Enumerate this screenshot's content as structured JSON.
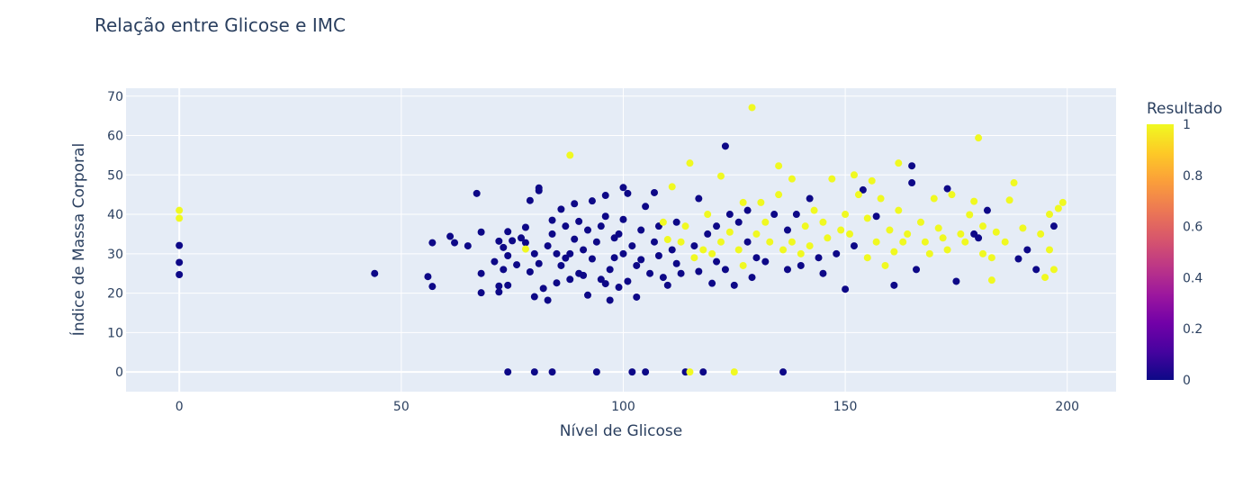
{
  "chart_data": {
    "type": "scatter",
    "title": "Relação entre Glicose e IMC",
    "xlabel": "Nível de Glicose",
    "ylabel": "Índice de Massa Corporal",
    "xlim": [
      -12,
      211
    ],
    "ylim": [
      -5,
      72
    ],
    "xticks": [
      0,
      50,
      100,
      150,
      200
    ],
    "xtick_labels": [
      "0",
      "50",
      "100",
      "150",
      "200"
    ],
    "yticks": [
      0,
      10,
      20,
      30,
      40,
      50,
      60,
      70
    ],
    "ytick_labels": [
      "0",
      "10",
      "20",
      "30",
      "40",
      "50",
      "60",
      "70"
    ],
    "grid": true,
    "colorbar": {
      "title": "Resultado",
      "range": [
        0,
        1
      ],
      "ticks": [
        0,
        0.2,
        0.4,
        0.6,
        0.8,
        1
      ],
      "tick_labels": [
        "0",
        "0.2",
        "0.4",
        "0.6",
        "0.8",
        "1"
      ],
      "colorscale": [
        "#0d0887",
        "#46039f",
        "#7201a8",
        "#9c179e",
        "#bd3786",
        "#d8576b",
        "#ed7953",
        "#fb9f3a",
        "#fdca26",
        "#f0f921"
      ]
    },
    "points": [
      [
        0,
        32.1,
        0
      ],
      [
        0,
        27.8,
        0
      ],
      [
        0,
        24.7,
        0
      ],
      [
        0,
        41.0,
        1
      ],
      [
        0,
        39.0,
        1
      ],
      [
        44,
        25.0,
        0
      ],
      [
        56,
        24.2,
        0
      ],
      [
        57,
        21.7,
        0
      ],
      [
        57,
        32.8,
        0
      ],
      [
        61,
        34.4,
        0
      ],
      [
        62,
        32.8,
        0
      ],
      [
        65,
        32.0,
        0
      ],
      [
        67,
        45.3,
        0
      ],
      [
        68,
        35.5,
        0
      ],
      [
        68,
        25.0,
        0
      ],
      [
        68,
        20.1,
        0
      ],
      [
        71,
        28.0,
        0
      ],
      [
        72,
        33.2,
        0
      ],
      [
        72,
        21.8,
        0
      ],
      [
        72,
        20.3,
        0
      ],
      [
        73,
        26.0,
        0
      ],
      [
        73,
        31.6,
        0
      ],
      [
        74,
        35.6,
        0
      ],
      [
        74,
        29.5,
        0
      ],
      [
        74,
        22.0,
        0
      ],
      [
        74,
        0,
        0
      ],
      [
        75,
        33.3,
        0
      ],
      [
        76,
        27.2,
        0
      ],
      [
        77,
        34.0,
        0
      ],
      [
        78,
        32.8,
        0
      ],
      [
        78,
        36.7,
        0
      ],
      [
        78,
        31.2,
        1
      ],
      [
        79,
        25.4,
        0
      ],
      [
        79,
        43.5,
        0
      ],
      [
        80,
        30.0,
        0
      ],
      [
        80,
        19.1,
        0
      ],
      [
        80,
        0,
        0
      ],
      [
        81,
        46.0,
        0
      ],
      [
        81,
        46.7,
        0
      ],
      [
        81,
        27.5,
        0
      ],
      [
        82,
        21.2,
        0
      ],
      [
        83,
        18.2,
        0
      ],
      [
        83,
        32.0,
        0
      ],
      [
        84,
        35.0,
        0
      ],
      [
        84,
        38.5,
        0
      ],
      [
        84,
        0,
        0
      ],
      [
        85,
        30.0,
        0
      ],
      [
        85,
        22.6,
        0
      ],
      [
        86,
        41.3,
        0
      ],
      [
        86,
        27.0,
        0
      ],
      [
        87,
        37.0,
        0
      ],
      [
        87,
        28.9,
        0
      ],
      [
        88,
        55.0,
        1
      ],
      [
        88,
        30.0,
        0
      ],
      [
        88,
        23.5,
        0
      ],
      [
        89,
        33.7,
        0
      ],
      [
        89,
        42.7,
        0
      ],
      [
        90,
        38.2,
        0
      ],
      [
        90,
        25.0,
        0
      ],
      [
        91,
        31.0,
        0
      ],
      [
        91,
        24.5,
        0
      ],
      [
        92,
        19.5,
        0
      ],
      [
        92,
        36.0,
        0
      ],
      [
        93,
        28.7,
        0
      ],
      [
        93,
        43.4,
        0
      ],
      [
        94,
        0,
        0
      ],
      [
        94,
        33.0,
        0
      ],
      [
        95,
        37.0,
        0
      ],
      [
        95,
        23.5,
        0
      ],
      [
        96,
        39.5,
        0
      ],
      [
        96,
        22.4,
        0
      ],
      [
        96,
        44.8,
        0
      ],
      [
        97,
        26.0,
        0
      ],
      [
        97,
        18.2,
        0
      ],
      [
        98,
        34.0,
        0
      ],
      [
        98,
        29.0,
        0
      ],
      [
        99,
        35.0,
        0
      ],
      [
        99,
        21.5,
        0
      ],
      [
        100,
        30.0,
        0
      ],
      [
        100,
        46.8,
        0
      ],
      [
        100,
        38.7,
        0
      ],
      [
        101,
        23.0,
        0
      ],
      [
        101,
        45.3,
        0
      ],
      [
        102,
        0,
        0
      ],
      [
        102,
        32.0,
        0
      ],
      [
        103,
        27.0,
        0
      ],
      [
        103,
        19.0,
        0
      ],
      [
        104,
        36.0,
        0
      ],
      [
        104,
        28.5,
        0
      ],
      [
        105,
        0,
        0
      ],
      [
        105,
        42.0,
        0
      ],
      [
        106,
        25.0,
        0
      ],
      [
        107,
        33.0,
        0
      ],
      [
        107,
        45.5,
        0
      ],
      [
        108,
        29.5,
        0
      ],
      [
        108,
        37.0,
        0
      ],
      [
        109,
        24.0,
        0
      ],
      [
        109,
        38.0,
        1
      ],
      [
        110,
        22.0,
        0
      ],
      [
        110,
        33.6,
        1
      ],
      [
        111,
        31.0,
        0
      ],
      [
        111,
        47.0,
        1
      ],
      [
        112,
        27.5,
        0
      ],
      [
        112,
        38.0,
        0
      ],
      [
        113,
        33.0,
        1
      ],
      [
        113,
        25.0,
        0
      ],
      [
        114,
        37.0,
        1
      ],
      [
        114,
        0,
        0
      ],
      [
        115,
        0,
        1
      ],
      [
        115,
        53.0,
        1
      ],
      [
        116,
        29.0,
        1
      ],
      [
        116,
        32.0,
        0
      ],
      [
        117,
        44.0,
        0
      ],
      [
        117,
        25.5,
        0
      ],
      [
        118,
        31.0,
        1
      ],
      [
        118,
        0,
        0
      ],
      [
        119,
        35.0,
        0
      ],
      [
        119,
        40.0,
        1
      ],
      [
        120,
        22.5,
        0
      ],
      [
        120,
        30.0,
        1
      ],
      [
        121,
        37.0,
        0
      ],
      [
        121,
        28.0,
        0
      ],
      [
        122,
        49.7,
        1
      ],
      [
        122,
        33.0,
        1
      ],
      [
        123,
        57.3,
        0
      ],
      [
        123,
        26.0,
        0
      ],
      [
        124,
        35.5,
        1
      ],
      [
        124,
        40.0,
        0
      ],
      [
        125,
        0,
        1
      ],
      [
        125,
        22.0,
        0
      ],
      [
        126,
        31.0,
        1
      ],
      [
        126,
        38.0,
        0
      ],
      [
        127,
        27.0,
        1
      ],
      [
        127,
        43.0,
        1
      ],
      [
        128,
        33.0,
        0
      ],
      [
        128,
        41.0,
        0
      ],
      [
        129,
        67.1,
        1
      ],
      [
        129,
        24.0,
        0
      ],
      [
        130,
        35.0,
        1
      ],
      [
        130,
        29.0,
        0
      ],
      [
        131,
        43.0,
        1
      ],
      [
        132,
        38.0,
        1
      ],
      [
        132,
        28.0,
        0
      ],
      [
        133,
        33.0,
        1
      ],
      [
        134,
        40.0,
        0
      ],
      [
        135,
        45.0,
        1
      ],
      [
        135,
        52.3,
        1
      ],
      [
        136,
        0,
        0
      ],
      [
        136,
        31.0,
        1
      ],
      [
        137,
        36.0,
        0
      ],
      [
        137,
        26.0,
        0
      ],
      [
        138,
        49.0,
        1
      ],
      [
        138,
        33.0,
        1
      ],
      [
        139,
        40.0,
        0
      ],
      [
        140,
        30.0,
        1
      ],
      [
        140,
        27.0,
        0
      ],
      [
        141,
        37.0,
        1
      ],
      [
        142,
        44.0,
        0
      ],
      [
        142,
        32.0,
        1
      ],
      [
        143,
        41.0,
        1
      ],
      [
        144,
        29.0,
        0
      ],
      [
        145,
        38.0,
        1
      ],
      [
        145,
        25.0,
        0
      ],
      [
        146,
        34.0,
        1
      ],
      [
        147,
        49.0,
        1
      ],
      [
        148,
        30.0,
        0
      ],
      [
        149,
        36.0,
        1
      ],
      [
        150,
        40.0,
        1
      ],
      [
        150,
        21.0,
        0
      ],
      [
        151,
        35.0,
        1
      ],
      [
        152,
        50.0,
        1
      ],
      [
        152,
        32.0,
        0
      ],
      [
        153,
        45.0,
        1
      ],
      [
        154,
        46.2,
        0
      ],
      [
        155,
        39.0,
        1
      ],
      [
        155,
        29.0,
        1
      ],
      [
        156,
        48.5,
        1
      ],
      [
        157,
        39.5,
        0
      ],
      [
        157,
        33.0,
        1
      ],
      [
        158,
        44.0,
        1
      ],
      [
        159,
        27.0,
        1
      ],
      [
        160,
        36.0,
        1
      ],
      [
        161,
        22.0,
        0
      ],
      [
        161,
        30.5,
        1
      ],
      [
        162,
        53.0,
        1
      ],
      [
        162,
        41.0,
        1
      ],
      [
        163,
        33.0,
        1
      ],
      [
        164,
        35.0,
        1
      ],
      [
        165,
        52.3,
        0
      ],
      [
        165,
        48.0,
        0
      ],
      [
        166,
        26.0,
        0
      ],
      [
        167,
        38.0,
        1
      ],
      [
        168,
        33.0,
        1
      ],
      [
        169,
        30.0,
        1
      ],
      [
        170,
        44.0,
        1
      ],
      [
        171,
        36.5,
        1
      ],
      [
        172,
        34.0,
        1
      ],
      [
        173,
        46.5,
        0
      ],
      [
        173,
        31.0,
        1
      ],
      [
        174,
        45.0,
        1
      ],
      [
        175,
        23.0,
        0
      ],
      [
        176,
        35.0,
        1
      ],
      [
        177,
        33.0,
        1
      ],
      [
        178,
        39.9,
        1
      ],
      [
        179,
        43.3,
        1
      ],
      [
        179,
        35.0,
        0
      ],
      [
        180,
        59.4,
        1
      ],
      [
        180,
        34.0,
        0
      ],
      [
        181,
        37.0,
        1
      ],
      [
        181,
        30.0,
        1
      ],
      [
        182,
        41.0,
        0
      ],
      [
        183,
        23.3,
        1
      ],
      [
        183,
        29.0,
        1
      ],
      [
        184,
        35.5,
        1
      ],
      [
        186,
        33.0,
        1
      ],
      [
        187,
        43.6,
        1
      ],
      [
        188,
        48.0,
        1
      ],
      [
        189,
        28.7,
        0
      ],
      [
        190,
        36.5,
        1
      ],
      [
        191,
        31.0,
        0
      ],
      [
        193,
        26.0,
        0
      ],
      [
        194,
        35.0,
        1
      ],
      [
        195,
        24.0,
        1
      ],
      [
        196,
        40.0,
        1
      ],
      [
        196,
        31.0,
        1
      ],
      [
        197,
        37.0,
        0
      ],
      [
        197,
        26.0,
        1
      ],
      [
        198,
        41.5,
        1
      ],
      [
        199,
        43.0,
        1
      ]
    ]
  }
}
